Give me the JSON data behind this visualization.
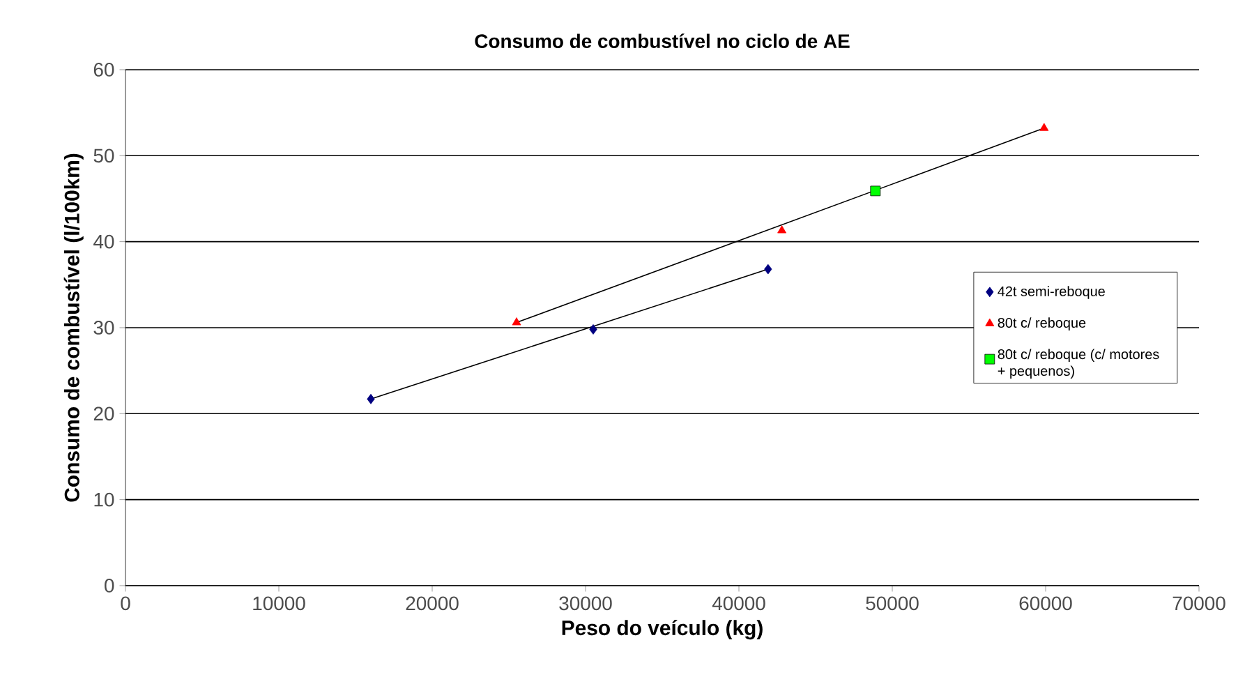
{
  "chart_data": {
    "type": "scatter",
    "title": "Consumo de combustível no ciclo de AE",
    "xlabel": "Peso do veículo (kg)",
    "ylabel": "Consumo de combustível (l/100km)",
    "xlim": [
      0,
      70000
    ],
    "xticks": [
      0,
      10000,
      20000,
      30000,
      40000,
      50000,
      60000,
      70000
    ],
    "ylim": [
      0,
      60
    ],
    "yticks": [
      0,
      10,
      20,
      30,
      40,
      50,
      60
    ],
    "grid": "y",
    "legend": "right",
    "series": [
      {
        "name": "42t semi-reboque",
        "color": "#000080",
        "marker": "diamond",
        "x": [
          16000,
          30500,
          41900
        ],
        "values": [
          21.7,
          29.8,
          36.8
        ]
      },
      {
        "name": "80t c/ reboque",
        "color": "#ff0000",
        "marker": "triangle",
        "x": [
          25500,
          42800,
          59900
        ],
        "values": [
          30.6,
          41.3,
          53.2
        ]
      },
      {
        "name": "80t c/ reboque (c/ motores + pequenos)",
        "color": "#00ff00",
        "marker": "square",
        "x": [
          48900
        ],
        "values": [
          45.9
        ]
      },
      {
        "type": "line",
        "color": "#000000",
        "x": [
          16000,
          41900
        ],
        "values": [
          21.7,
          36.8
        ]
      },
      {
        "type": "line",
        "color": "#000000",
        "x": [
          25500,
          59900
        ],
        "values": [
          30.6,
          53.2
        ]
      }
    ]
  }
}
